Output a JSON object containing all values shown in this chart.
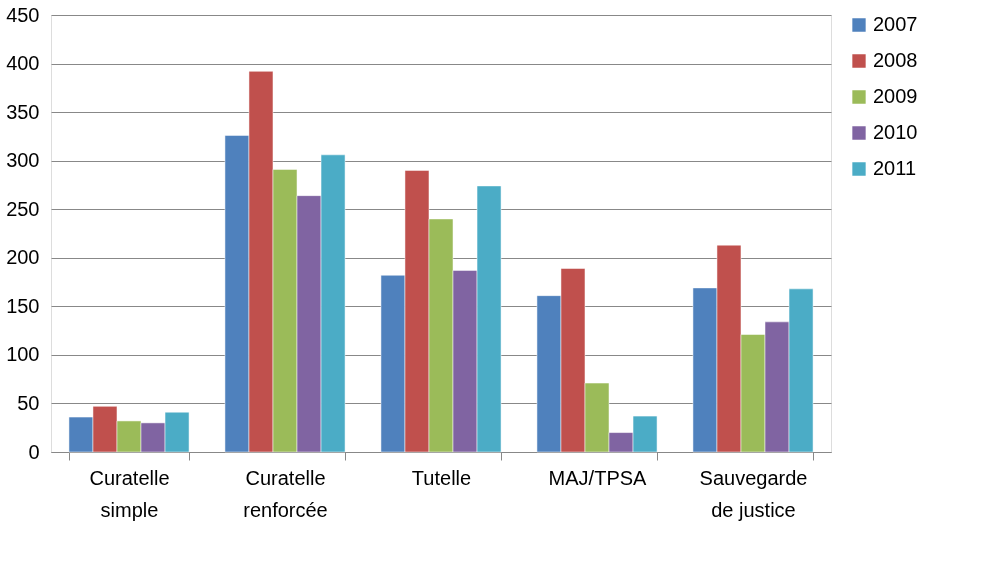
{
  "chart_data": {
    "type": "bar",
    "categories": [
      "Curatelle simple",
      "Curatelle renforcée",
      "Tutelle",
      "MAJ/TPSA",
      "Sauvegarde de justice"
    ],
    "series": [
      {
        "name": "2007",
        "color": "#4f81bd",
        "values": [
          36,
          326,
          182,
          161,
          169
        ]
      },
      {
        "name": "2008",
        "color": "#c0504d",
        "values": [
          47,
          392,
          290,
          189,
          213
        ]
      },
      {
        "name": "2009",
        "color": "#9bbb59",
        "values": [
          32,
          291,
          240,
          71,
          121
        ]
      },
      {
        "name": "2010",
        "color": "#8064a2",
        "values": [
          30,
          264,
          187,
          20,
          134
        ]
      },
      {
        "name": "2011",
        "color": "#4bacc6",
        "values": [
          41,
          306,
          274,
          37,
          168
        ]
      }
    ],
    "ylim": [
      0,
      450
    ],
    "yticks": [
      0,
      50,
      100,
      150,
      200,
      250,
      300,
      350,
      400,
      450
    ],
    "grid": "y",
    "legend": "right"
  }
}
